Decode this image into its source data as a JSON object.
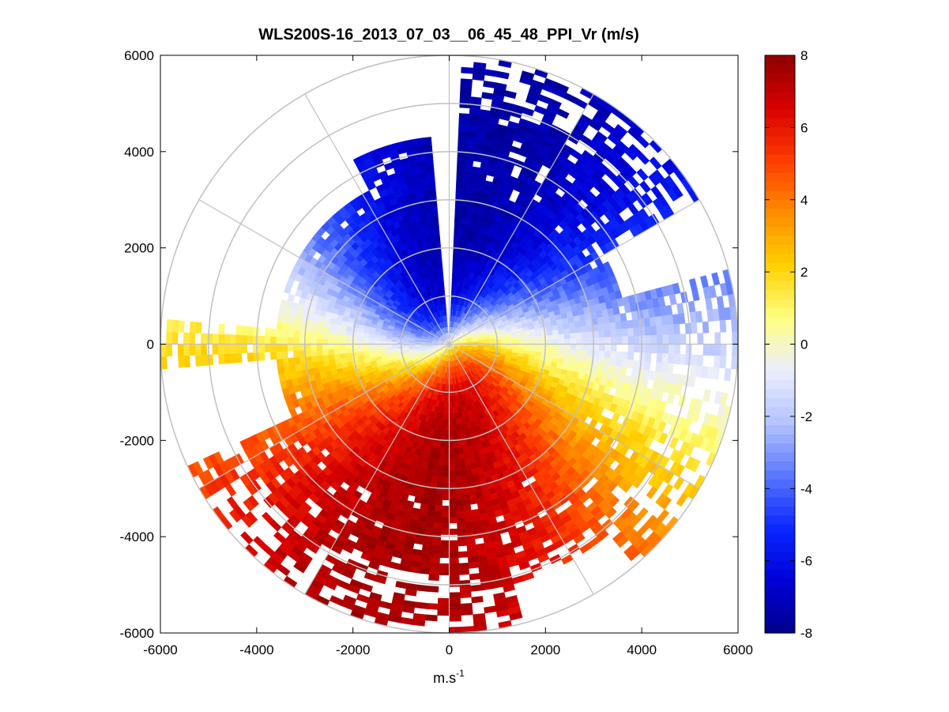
{
  "chart_data": {
    "type": "heatmap",
    "subtype": "polar-ppi",
    "title": "WLS200S-16_2013_07_03__06_45_48_PPI_Vr (m/s)",
    "xlabel": "m.s",
    "xlabel_sup": "-1",
    "ylabel": "",
    "xlim": [
      -6000,
      6000
    ],
    "ylim": [
      -6000,
      6000
    ],
    "x_ticks": [
      -6000,
      -4000,
      -2000,
      0,
      2000,
      4000,
      6000
    ],
    "y_ticks": [
      6000,
      4000,
      2000,
      0,
      -2000,
      -4000,
      -6000
    ],
    "x_tick_labels": [
      "-6000",
      "-4000",
      "-2000",
      "0",
      "2000",
      "4000",
      "6000"
    ],
    "y_tick_labels": [
      "6000",
      "4000",
      "2000",
      "0",
      "-2000",
      "-4000",
      "-6000"
    ],
    "polar_grid": {
      "range_rings_m": [
        1000,
        2000,
        3000,
        4000,
        5000,
        6000
      ],
      "spoke_angles_deg": [
        0,
        30,
        60,
        90,
        120,
        150,
        180,
        210,
        240,
        270,
        300,
        330
      ]
    },
    "colorbar": {
      "range": [
        -8,
        8
      ],
      "ticks": [
        8,
        6,
        4,
        2,
        0,
        -2,
        -4,
        -6,
        -8
      ],
      "tick_labels": [
        "8",
        "6",
        "4",
        "2",
        "0",
        "-2",
        "-4",
        "-6",
        "-8"
      ],
      "colors": [
        "#00008c",
        "#0000d8",
        "#0a28ff",
        "#5a78ff",
        "#b4c3ff",
        "#ebeeff",
        "#ffff80",
        "#ffd000",
        "#ff8c00",
        "#ff3c00",
        "#d80000",
        "#8c0000"
      ]
    },
    "field_description": {
      "max_range_m": 6000,
      "negative_lobe_azimuth_deg": 15,
      "positive_lobe_azimuth_deg": 195,
      "peak_speed_ms": 7.5
    }
  },
  "colors": {
    "grid": "#c0c0c0",
    "axes": "#000000",
    "background": "#ffffff"
  }
}
